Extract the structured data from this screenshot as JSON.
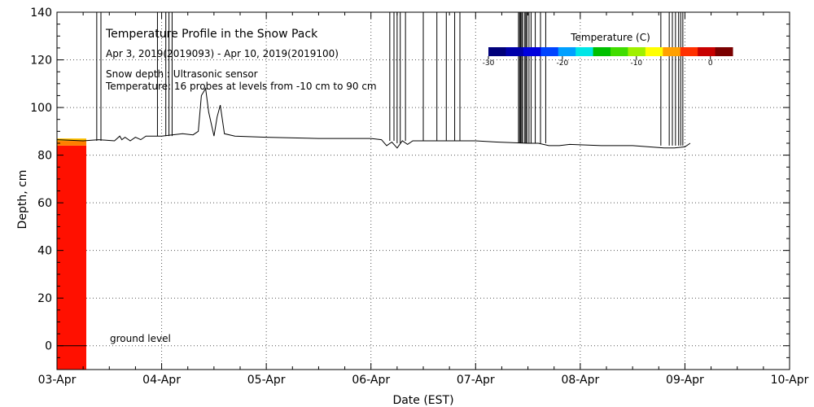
{
  "chart_data": {
    "type": "line",
    "title": "Temperature Profile in the Snow Pack",
    "subtitle": "Apr  3, 2019(2019093) - Apr 10, 2019(2019100)",
    "notes": [
      "Snow depth : Ultrasonic sensor",
      "Temperature: 16 probes at levels from -10 cm to 90 cm"
    ],
    "xlabel": "Date (EST)",
    "ylabel": "Depth, cm",
    "x_ticks": [
      "03-Apr",
      "04-Apr",
      "05-Apr",
      "06-Apr",
      "07-Apr",
      "08-Apr",
      "09-Apr",
      "10-Apr"
    ],
    "xlim_days": [
      0,
      7
    ],
    "ylim": [
      -10,
      140
    ],
    "y_ticks": [
      0,
      20,
      40,
      60,
      80,
      100,
      120,
      140
    ],
    "grid": true,
    "ground_level_label": "ground level",
    "colorbar": {
      "title": "Temperature (C)",
      "range": [
        -30,
        3
      ],
      "ticks": [
        -30,
        -20,
        -10,
        0
      ],
      "tick_labels": [
        "-30",
        "-20",
        "-10",
        "0"
      ],
      "colors": [
        "#00007a",
        "#0000aa",
        "#0000dd",
        "#0044ff",
        "#00a0ff",
        "#00e6e6",
        "#00c000",
        "#40dd00",
        "#a0f000",
        "#ffff00",
        "#ffa000",
        "#ff3000",
        "#c80000",
        "#7a0000"
      ]
    },
    "temperature_profile": {
      "x_start_day": 0.0,
      "x_end_day": 0.28,
      "layers": [
        {
          "from_cm": -10,
          "to_cm": 84,
          "color": "#ff1000"
        },
        {
          "from_cm": 84,
          "to_cm": 86,
          "color": "#ff8000"
        },
        {
          "from_cm": 86,
          "to_cm": 87,
          "color": "#ffc000"
        }
      ]
    },
    "series": [
      {
        "name": "Snow depth",
        "x_days": [
          0.0,
          0.25,
          0.4,
          0.55,
          0.6,
          0.62,
          0.65,
          0.7,
          0.75,
          0.8,
          0.85,
          0.9,
          1.0,
          1.1,
          1.2,
          1.3,
          1.35,
          1.38,
          1.42,
          1.45,
          1.5,
          1.53,
          1.56,
          1.6,
          1.7,
          2.0,
          2.5,
          3.0,
          3.1,
          3.15,
          3.2,
          3.25,
          3.3,
          3.35,
          3.4,
          3.5,
          3.8,
          4.0,
          4.2,
          4.5,
          4.6,
          4.7,
          4.8,
          4.9,
          5.2,
          5.5,
          5.8,
          5.9,
          6.0,
          6.05
        ],
        "depth_cm": [
          86.5,
          86,
          86.5,
          86,
          88,
          86.5,
          87.5,
          86,
          87.5,
          86.5,
          88,
          88,
          88,
          88.5,
          89,
          88.5,
          90,
          105,
          108,
          98,
          88,
          96,
          101,
          89,
          88,
          87.5,
          87,
          87,
          86.5,
          84,
          85.5,
          83,
          86,
          84.5,
          86,
          86,
          86,
          86,
          85.5,
          85,
          85,
          84,
          84,
          84.5,
          84,
          84,
          83,
          83,
          83.5,
          85
        ]
      }
    ],
    "spikes": [
      {
        "x_day": 0.38,
        "top_cm": 140,
        "base_cm": 86
      },
      {
        "x_day": 0.42,
        "top_cm": 140,
        "base_cm": 86
      },
      {
        "x_day": 0.96,
        "top_cm": 140,
        "base_cm": 88
      },
      {
        "x_day": 1.04,
        "top_cm": 140,
        "base_cm": 88
      },
      {
        "x_day": 1.07,
        "top_cm": 140,
        "base_cm": 88
      },
      {
        "x_day": 1.1,
        "top_cm": 140,
        "base_cm": 88
      },
      {
        "x_day": 3.18,
        "top_cm": 140,
        "base_cm": 86
      },
      {
        "x_day": 3.22,
        "top_cm": 140,
        "base_cm": 86
      },
      {
        "x_day": 3.25,
        "top_cm": 140,
        "base_cm": 85
      },
      {
        "x_day": 3.28,
        "top_cm": 140,
        "base_cm": 85
      },
      {
        "x_day": 3.33,
        "top_cm": 140,
        "base_cm": 86
      },
      {
        "x_day": 3.5,
        "top_cm": 140,
        "base_cm": 86
      },
      {
        "x_day": 3.63,
        "top_cm": 140,
        "base_cm": 86
      },
      {
        "x_day": 3.72,
        "top_cm": 140,
        "base_cm": 86
      },
      {
        "x_day": 3.8,
        "top_cm": 140,
        "base_cm": 86
      },
      {
        "x_day": 3.85,
        "top_cm": 140,
        "base_cm": 86
      },
      {
        "x_day": 4.41,
        "top_cm": 140,
        "base_cm": 85
      },
      {
        "x_day": 4.42,
        "top_cm": 140,
        "base_cm": 85
      },
      {
        "x_day": 4.43,
        "top_cm": 140,
        "base_cm": 85
      },
      {
        "x_day": 4.44,
        "top_cm": 140,
        "base_cm": 85
      },
      {
        "x_day": 4.45,
        "top_cm": 140,
        "base_cm": 85
      },
      {
        "x_day": 4.47,
        "top_cm": 140,
        "base_cm": 85
      },
      {
        "x_day": 4.48,
        "top_cm": 140,
        "base_cm": 85
      },
      {
        "x_day": 4.49,
        "top_cm": 140,
        "base_cm": 85
      },
      {
        "x_day": 4.51,
        "top_cm": 140,
        "base_cm": 85
      },
      {
        "x_day": 4.53,
        "top_cm": 140,
        "base_cm": 85
      },
      {
        "x_day": 4.57,
        "top_cm": 140,
        "base_cm": 85
      },
      {
        "x_day": 4.62,
        "top_cm": 140,
        "base_cm": 85
      },
      {
        "x_day": 4.67,
        "top_cm": 140,
        "base_cm": 85
      },
      {
        "x_day": 5.77,
        "top_cm": 140,
        "base_cm": 84
      },
      {
        "x_day": 5.85,
        "top_cm": 140,
        "base_cm": 84
      },
      {
        "x_day": 5.88,
        "top_cm": 140,
        "base_cm": 84
      },
      {
        "x_day": 5.91,
        "top_cm": 140,
        "base_cm": 84
      },
      {
        "x_day": 5.94,
        "top_cm": 140,
        "base_cm": 84
      },
      {
        "x_day": 5.96,
        "top_cm": 140,
        "base_cm": 84
      },
      {
        "x_day": 5.98,
        "top_cm": 140,
        "base_cm": 84
      }
    ]
  }
}
